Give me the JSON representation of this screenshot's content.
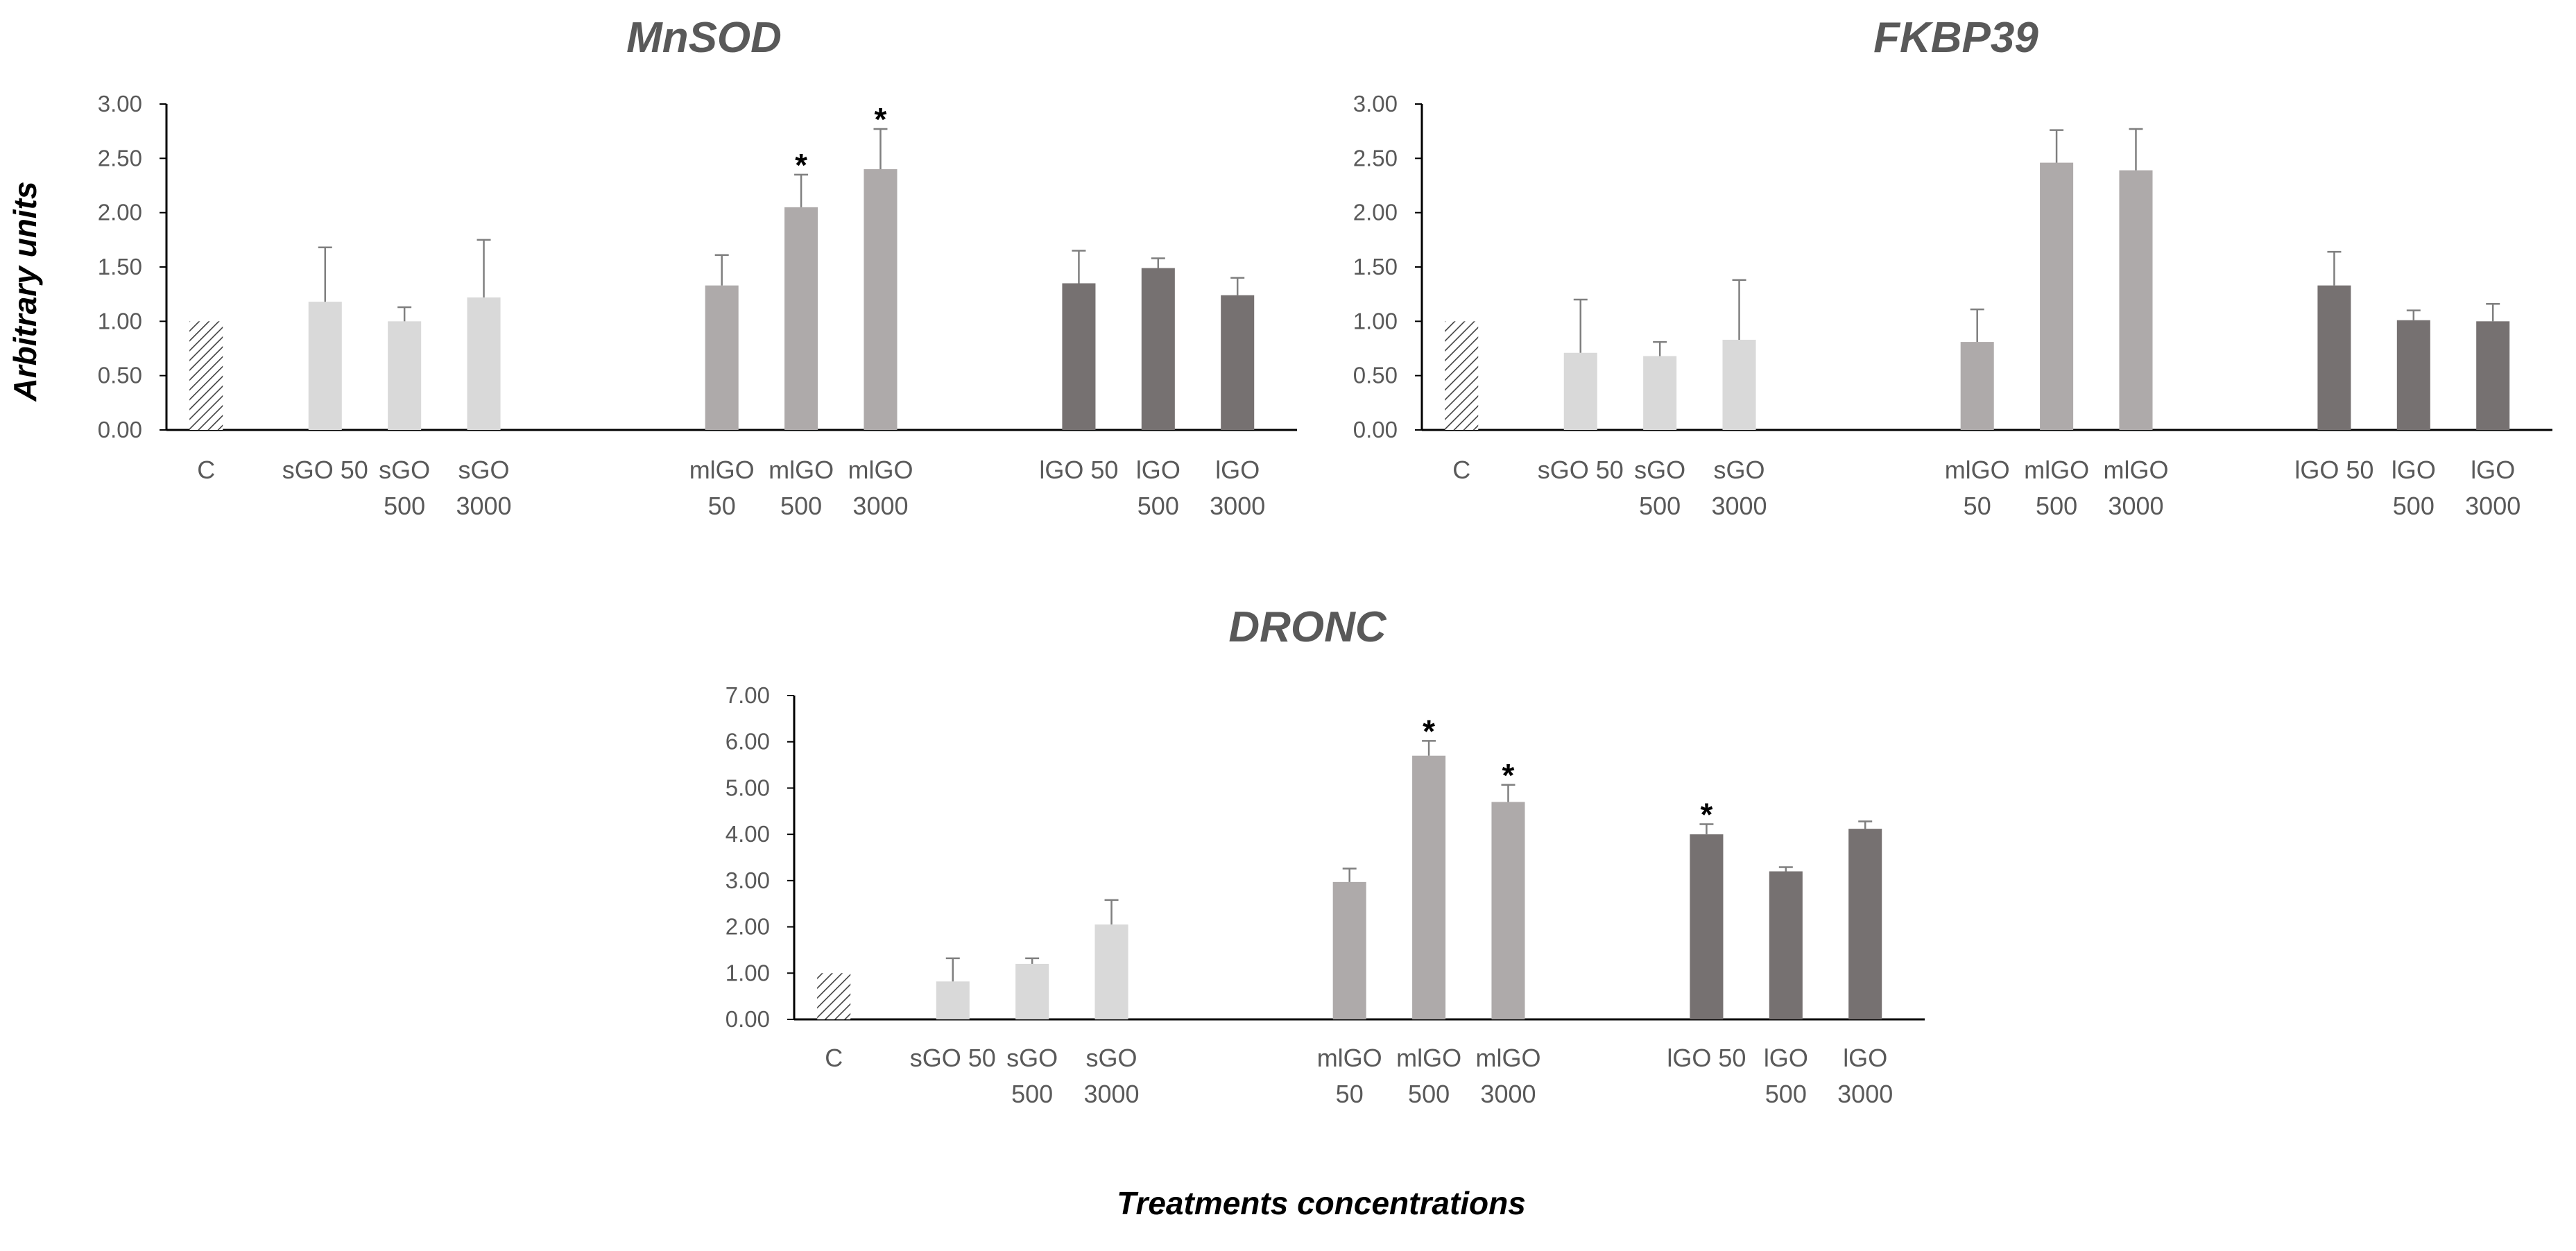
{
  "y_axis_label": "Arbitrary units",
  "x_axis_label": "Treatments concentrations",
  "colors": {
    "control_hatch": "#404040",
    "sGO": "#d9d9d9",
    "mlGO": "#aeaaaa",
    "lGO": "#767171",
    "axis": "#000000",
    "error_bar": "#7f7f7f",
    "text": "#595959"
  },
  "chart_data": [
    {
      "type": "bar",
      "title": "MnSOD",
      "ylabel": "Arbitrary units",
      "xlabel": "Treatments concentrations",
      "ylim": [
        0,
        3
      ],
      "y_ticks": [
        "0.00",
        "0.50",
        "1.00",
        "1.50",
        "2.00",
        "2.50",
        "3.00"
      ],
      "categories": [
        "C",
        "sGO 50",
        "sGO 500",
        "sGO 3000",
        "mlGO 50",
        "mlGO 500",
        "mlGO 3000",
        "lGO 50",
        "lGO 500",
        "lGO 3000"
      ],
      "category_label_lines": [
        [
          "C"
        ],
        [
          "sGO 50"
        ],
        [
          "sGO",
          "500"
        ],
        [
          "sGO",
          "3000"
        ],
        [
          "mlGO",
          "50"
        ],
        [
          "mlGO",
          "500"
        ],
        [
          "mlGO",
          "3000"
        ],
        [
          "lGO 50"
        ],
        [
          "lGO",
          "500"
        ],
        [
          "lGO",
          "3000"
        ]
      ],
      "groups": [
        "control",
        "sGO",
        "sGO",
        "sGO",
        "mlGO",
        "mlGO",
        "mlGO",
        "lGO",
        "lGO",
        "lGO"
      ],
      "values": [
        1.0,
        1.18,
        1.0,
        1.22,
        1.33,
        2.05,
        2.4,
        1.35,
        1.49,
        1.24
      ],
      "error": [
        0,
        0.5,
        0.13,
        0.53,
        0.28,
        0.3,
        0.37,
        0.3,
        0.09,
        0.16
      ],
      "significant": [
        false,
        false,
        false,
        false,
        false,
        true,
        true,
        false,
        false,
        false
      ],
      "significance_marker": "*"
    },
    {
      "type": "bar",
      "title": "FKBP39",
      "ylabel": "Arbitrary units",
      "xlabel": "Treatments concentrations",
      "ylim": [
        0,
        3
      ],
      "y_ticks": [
        "0.00",
        "0.50",
        "1.00",
        "1.50",
        "2.00",
        "2.50",
        "3.00"
      ],
      "categories": [
        "C",
        "sGO 50",
        "sGO 500",
        "sGO 3000",
        "mlGO 50",
        "mlGO 500",
        "mlGO 3000",
        "lGO 50",
        "lGO 500",
        "lGO 3000"
      ],
      "category_label_lines": [
        [
          "C"
        ],
        [
          "sGO 50"
        ],
        [
          "sGO",
          "500"
        ],
        [
          "sGO",
          "3000"
        ],
        [
          "mlGO",
          "50"
        ],
        [
          "mlGO",
          "500"
        ],
        [
          "mlGO",
          "3000"
        ],
        [
          "lGO 50"
        ],
        [
          "lGO",
          "500"
        ],
        [
          "lGO",
          "3000"
        ]
      ],
      "groups": [
        "control",
        "sGO",
        "sGO",
        "sGO",
        "mlGO",
        "mlGO",
        "mlGO",
        "lGO",
        "lGO",
        "lGO"
      ],
      "values": [
        1.0,
        0.71,
        0.68,
        0.83,
        0.81,
        2.46,
        2.39,
        1.33,
        1.01,
        1.0
      ],
      "error": [
        0,
        0.49,
        0.13,
        0.55,
        0.3,
        0.3,
        0.38,
        0.31,
        0.09,
        0.16
      ],
      "significant": [
        false,
        false,
        false,
        false,
        false,
        false,
        false,
        false,
        false,
        false
      ],
      "significance_marker": "*"
    },
    {
      "type": "bar",
      "title": "DRONC",
      "ylabel": "Arbitrary units",
      "xlabel": "Treatments concentrations",
      "ylim": [
        0,
        7
      ],
      "y_ticks": [
        "0.00",
        "1.00",
        "2.00",
        "3.00",
        "4.00",
        "5.00",
        "6.00",
        "7.00"
      ],
      "categories": [
        "C",
        "sGO 50",
        "sGO 500",
        "sGO 3000",
        "mlGO 50",
        "mlGO 500",
        "mlGO 3000",
        "lGO 50",
        "lGO 500",
        "lGO 3000"
      ],
      "category_label_lines": [
        [
          "C"
        ],
        [
          "sGO 50"
        ],
        [
          "sGO",
          "500"
        ],
        [
          "sGO",
          "3000"
        ],
        [
          "mlGO",
          "50"
        ],
        [
          "mlGO",
          "500"
        ],
        [
          "mlGO",
          "3000"
        ],
        [
          "lGO 50"
        ],
        [
          "lGO",
          "500"
        ],
        [
          "lGO",
          "3000"
        ]
      ],
      "groups": [
        "control",
        "sGO",
        "sGO",
        "sGO",
        "mlGO",
        "mlGO",
        "mlGO",
        "lGO",
        "lGO",
        "lGO"
      ],
      "values": [
        1.0,
        0.82,
        1.2,
        2.05,
        2.97,
        5.7,
        4.7,
        4.0,
        3.2,
        4.12
      ],
      "error": [
        0,
        0.5,
        0.12,
        0.53,
        0.29,
        0.32,
        0.37,
        0.22,
        0.09,
        0.16
      ],
      "significant": [
        false,
        false,
        false,
        false,
        false,
        true,
        true,
        true,
        false,
        false
      ],
      "significance_marker": "*"
    }
  ]
}
